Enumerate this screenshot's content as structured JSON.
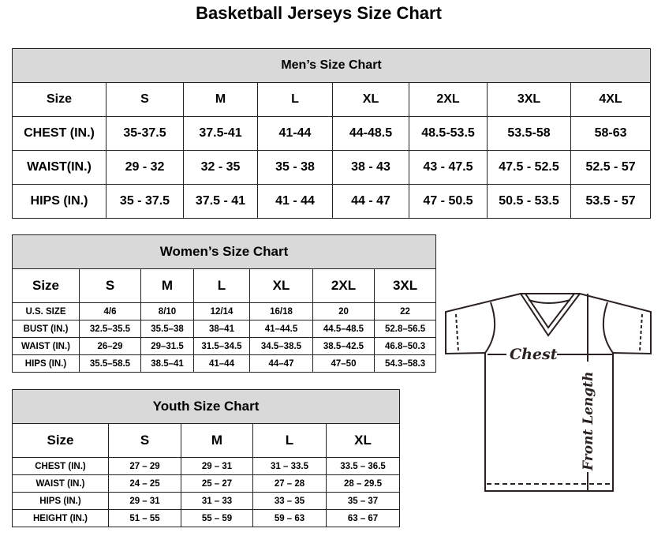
{
  "title": "Basketball Jerseys Size Chart",
  "men": {
    "caption": "Men’s Size Chart",
    "header": [
      "Size",
      "S",
      "M",
      "L",
      "XL",
      "2XL",
      "3XL",
      "4XL"
    ],
    "rows": [
      [
        "CHEST (IN.)",
        "35-37.5",
        "37.5-41",
        "41-44",
        "44-48.5",
        "48.5-53.5",
        "53.5-58",
        "58-63"
      ],
      [
        "WAIST(IN.)",
        "29 - 32",
        "32 - 35",
        "35 - 38",
        "38 - 43",
        "43 - 47.5",
        "47.5 - 52.5",
        "52.5 - 57"
      ],
      [
        "HIPS (IN.)",
        "35 - 37.5",
        "37.5 - 41",
        "41 - 44",
        "44 - 47",
        "47 - 50.5",
        "50.5 - 53.5",
        "53.5 - 57"
      ]
    ]
  },
  "women": {
    "caption": "Women’s Size Chart",
    "header": [
      "Size",
      "S",
      "M",
      "L",
      "XL",
      "2XL",
      "3XL"
    ],
    "rows": [
      [
        "U.S.  SIZE",
        "4/6",
        "8/10",
        "12/14",
        "16/18",
        "20",
        "22"
      ],
      [
        "BUST  (IN.)",
        "32.5–35.5",
        "35.5–38",
        "38–41",
        "41–44.5",
        "44.5–48.5",
        "52.8–56.5"
      ],
      [
        "WAIST  (IN.)",
        "26–29",
        "29–31.5",
        "31.5–34.5",
        "34.5–38.5",
        "38.5–42.5",
        "46.8–50.3"
      ],
      [
        "HIPS  (IN.)",
        "35.5–58.5",
        "38.5–41",
        "41–44",
        "44–47",
        "47–50",
        "54.3–58.3"
      ]
    ]
  },
  "youth": {
    "caption": "Youth Size Chart",
    "header": [
      "Size",
      "S",
      "M",
      "L",
      "XL"
    ],
    "rows": [
      [
        "CHEST  (IN.)",
        "27  –  29",
        "29  –  31",
        "31  –  33.5",
        "33.5  –  36.5"
      ],
      [
        "WAIST  (IN.)",
        "24  –  25",
        "25  –  27",
        "27  –  28",
        "28  –  29.5"
      ],
      [
        "HIPS  (IN.)",
        "29  –  31",
        "31  –  33",
        "33  –  35",
        "35  –  37"
      ],
      [
        "HEIGHT  (IN.)",
        "51  –  55",
        "55  –  59",
        "59  –  63",
        "63  –  67"
      ]
    ]
  },
  "diagram": {
    "chest_label": "Chest",
    "length_label": "Front Length"
  }
}
